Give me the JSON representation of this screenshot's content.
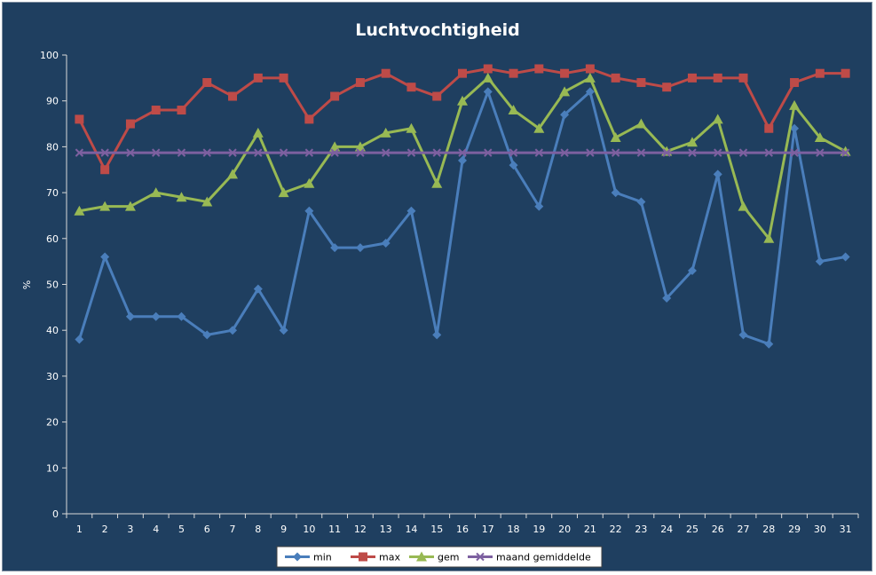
{
  "chart_data": {
    "type": "line",
    "title": "Luchtvochtigheid",
    "xlabel": "",
    "ylabel": "%",
    "ylim": [
      0,
      100
    ],
    "yticks": [
      0,
      10,
      20,
      30,
      40,
      50,
      60,
      70,
      80,
      90,
      100
    ],
    "grid": false,
    "legend_position": "bottom",
    "categories": [
      "1",
      "2",
      "3",
      "4",
      "5",
      "6",
      "7",
      "8",
      "9",
      "10",
      "11",
      "12",
      "13",
      "14",
      "15",
      "16",
      "17",
      "18",
      "19",
      "20",
      "21",
      "22",
      "23",
      "24",
      "25",
      "26",
      "27",
      "28",
      "29",
      "30",
      "31"
    ],
    "series": [
      {
        "name": "min",
        "color": "#4a7ebb",
        "marker": "diamond",
        "values": [
          38,
          56,
          43,
          43,
          43,
          39,
          40,
          49,
          40,
          66,
          58,
          58,
          59,
          66,
          39,
          77,
          92,
          76,
          67,
          87,
          92,
          70,
          68,
          47,
          53,
          74,
          39,
          37,
          84,
          55,
          56
        ]
      },
      {
        "name": "max",
        "color": "#be4b48",
        "marker": "square",
        "values": [
          86,
          75,
          85,
          88,
          88,
          94,
          91,
          95,
          95,
          86,
          91,
          94,
          96,
          93,
          91,
          96,
          97,
          96,
          97,
          96,
          97,
          95,
          94,
          93,
          95,
          95,
          95,
          84,
          94,
          96,
          96
        ]
      },
      {
        "name": "gem",
        "color": "#98b954",
        "marker": "triangle",
        "values": [
          66,
          67,
          67,
          70,
          69,
          68,
          74,
          83,
          70,
          72,
          80,
          80,
          83,
          84,
          72,
          90,
          95,
          88,
          84,
          92,
          95,
          82,
          85,
          79,
          81,
          86,
          67,
          60,
          89,
          82,
          79
        ]
      },
      {
        "name": "maand gemiddelde",
        "color": "#7d60a0",
        "marker": "x",
        "values": [
          78.7,
          78.7,
          78.7,
          78.7,
          78.7,
          78.7,
          78.7,
          78.7,
          78.7,
          78.7,
          78.7,
          78.7,
          78.7,
          78.7,
          78.7,
          78.7,
          78.7,
          78.7,
          78.7,
          78.7,
          78.7,
          78.7,
          78.7,
          78.7,
          78.7,
          78.7,
          78.7,
          78.7,
          78.7,
          78.7,
          78.7
        ]
      }
    ]
  },
  "colors": {
    "background": "#1f3f60",
    "axis": "#d9d9d9",
    "text": "#ffffff",
    "legend_background": "#ffffff"
  }
}
